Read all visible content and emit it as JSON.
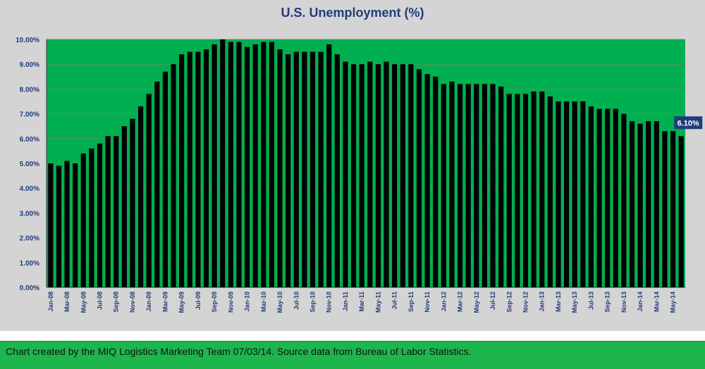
{
  "chart_data": {
    "type": "bar",
    "title": "U.S. Unemployment (%)",
    "ylim": [
      0,
      10
    ],
    "grid": true,
    "colors": {
      "plot_bg": "#00b050",
      "bar": "#000000",
      "axis_text": "#1f3c7a",
      "chart_bg": "#d4d4d4",
      "callout_bg": "#1f3c7a"
    },
    "yticks": [
      "0.00%",
      "1.00%",
      "2.00%",
      "3.00%",
      "4.00%",
      "5.00%",
      "6.00%",
      "7.00%",
      "8.00%",
      "9.00%",
      "10.00%"
    ],
    "categories": [
      "Jan-08",
      "Feb-08",
      "Mar-08",
      "Apr-08",
      "May-08",
      "Jun-08",
      "Jul-08",
      "Aug-08",
      "Sep-08",
      "Oct-08",
      "Nov-08",
      "Dec-08",
      "Jan-09",
      "Feb-09",
      "Mar-09",
      "Apr-09",
      "May-09",
      "Jun-09",
      "Jul-09",
      "Aug-09",
      "Sep-09",
      "Oct-09",
      "Nov-09",
      "Dec-09",
      "Jan-10",
      "Feb-10",
      "Mar-10",
      "Apr-10",
      "May-10",
      "Jun-10",
      "Jul-10",
      "Aug-10",
      "Sep-10",
      "Oct-10",
      "Nov-10",
      "Dec-10",
      "Jan-11",
      "Feb-11",
      "Mar-11",
      "Apr-11",
      "May-11",
      "Jun-11",
      "Jul-11",
      "Aug-11",
      "Sep-11",
      "Oct-11",
      "Nov-11",
      "Dec-11",
      "Jan-12",
      "Feb-12",
      "Mar-12",
      "Apr-12",
      "May-12",
      "Jun-12",
      "Jul-12",
      "Aug-12",
      "Sep-12",
      "Oct-12",
      "Nov-12",
      "Dec-12",
      "Jan-13",
      "Feb-13",
      "Mar-13",
      "Apr-13",
      "May-13",
      "Jun-13",
      "Jul-13",
      "Aug-13",
      "Sep-13",
      "Oct-13",
      "Nov-13",
      "Dec-13",
      "Jan-14",
      "Feb-14",
      "Mar-14",
      "Apr-14",
      "May-14",
      "Jun-14"
    ],
    "xtick_labels": [
      "Jan-08",
      "Mar-08",
      "May-08",
      "Jul-08",
      "Sep-08",
      "Nov-08",
      "Jan-09",
      "Mar-09",
      "May-09",
      "Jul-09",
      "Sep-09",
      "Nov-09",
      "Jan-10",
      "Mar-10",
      "May-10",
      "Jul-10",
      "Sep-10",
      "Nov-10",
      "Jan-11",
      "Mar-11",
      "May-11",
      "Jul-11",
      "Sep-11",
      "Nov-11",
      "Jan-12",
      "Mar-12",
      "May-12",
      "Jul-12",
      "Sep-12",
      "Nov-12",
      "Jan-13",
      "Mar-13",
      "May-13",
      "Jul-13",
      "Sep-13",
      "Nov-13",
      "Jan-14",
      "Mar-14",
      "May-14"
    ],
    "values": [
      5.0,
      4.9,
      5.1,
      5.0,
      5.4,
      5.6,
      5.8,
      6.1,
      6.1,
      6.5,
      6.8,
      7.3,
      7.8,
      8.3,
      8.7,
      9.0,
      9.4,
      9.5,
      9.5,
      9.6,
      9.8,
      10.0,
      9.9,
      9.9,
      9.7,
      9.8,
      9.9,
      9.9,
      9.6,
      9.4,
      9.5,
      9.5,
      9.5,
      9.5,
      9.8,
      9.4,
      9.1,
      9.0,
      9.0,
      9.1,
      9.0,
      9.1,
      9.0,
      9.0,
      9.0,
      8.8,
      8.6,
      8.5,
      8.2,
      8.3,
      8.2,
      8.2,
      8.2,
      8.2,
      8.2,
      8.1,
      7.8,
      7.8,
      7.8,
      7.9,
      7.9,
      7.7,
      7.5,
      7.5,
      7.5,
      7.5,
      7.3,
      7.2,
      7.2,
      7.2,
      7.0,
      6.7,
      6.6,
      6.7,
      6.7,
      6.3,
      6.3,
      6.1
    ],
    "callout": "6.10%"
  },
  "footer": {
    "text": "Chart created by the MIQ Logistics Marketing Team 07/03/14.  Source data from Bureau of Labor Statistics."
  }
}
